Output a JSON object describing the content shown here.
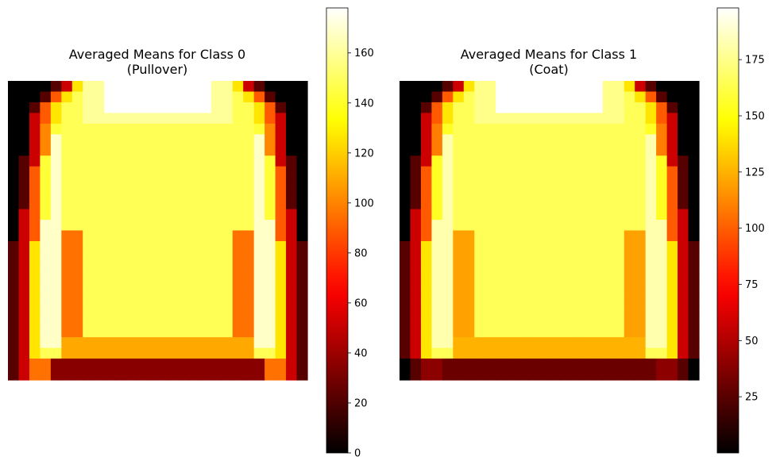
{
  "chart_data": [
    {
      "type": "heatmap",
      "title_line1": "Averaged Means for Class 0",
      "title_line2": "(Pullover)",
      "colormap": "hot",
      "grid_size": [
        28,
        28
      ],
      "axes_visible": false,
      "colorbar": {
        "min": 0,
        "max": 178,
        "ticks": [
          0,
          20,
          40,
          60,
          80,
          100,
          120,
          140,
          160
        ],
        "tick_labels": [
          "0",
          "20",
          "40",
          "60",
          "80",
          "100",
          "120",
          "140",
          "160"
        ]
      },
      "shape": "pullover",
      "values_desc": "28x28 mean pixel intensity grid; garment silhouette with bright body (~140-160), white collar/shoulder highlight (~178), dark background (~0)"
    },
    {
      "type": "heatmap",
      "title_line1": "Averaged Means for Class 1",
      "title_line2": "(Coat)",
      "colormap": "hot",
      "grid_size": [
        28,
        28
      ],
      "axes_visible": false,
      "colorbar": {
        "min": 0,
        "max": 198,
        "ticks": [
          25,
          50,
          75,
          100,
          125,
          150,
          175
        ],
        "tick_labels": [
          "25",
          "50",
          "75",
          "100",
          "125",
          "150",
          "175"
        ]
      },
      "shape": "coat",
      "values_desc": "28x28 mean pixel intensity grid; coat silhouette with bright body (~160-185), white collar (~198), dark background (~0)"
    }
  ]
}
